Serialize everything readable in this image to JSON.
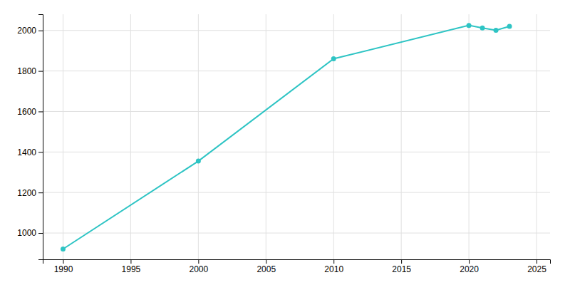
{
  "chart_data": {
    "type": "line",
    "x": [
      1990,
      2000,
      2010,
      2020,
      2021,
      2022,
      2023
    ],
    "values": [
      921,
      1355,
      1860,
      2025,
      2012,
      2001,
      2020
    ],
    "color": "#2ec4c4",
    "marker": "circle",
    "xlim": [
      1988.5,
      2026
    ],
    "ylim": [
      870,
      2080
    ],
    "xticks": [
      1990,
      1995,
      2000,
      2005,
      2010,
      2015,
      2020,
      2025
    ],
    "yticks": [
      1000,
      1200,
      1400,
      1600,
      1800,
      2000
    ],
    "grid": true
  }
}
